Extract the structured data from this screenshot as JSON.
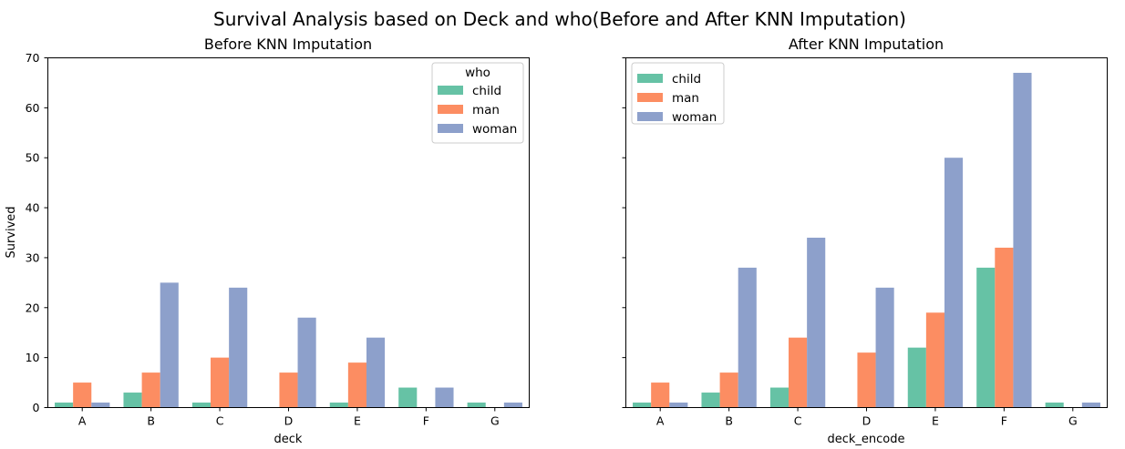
{
  "figure": {
    "title": "Survival Analysis based on Deck and who(Before and After KNN Imputation)"
  },
  "colors": {
    "child": "#66c2a5",
    "man": "#fc8d62",
    "woman": "#8da0cb"
  },
  "chart_data": [
    {
      "type": "bar",
      "title": "Before KNN Imputation",
      "xlabel": "deck",
      "ylabel": "Survived",
      "ylim": [
        0,
        70
      ],
      "yticks": [
        0,
        10,
        20,
        30,
        40,
        50,
        60,
        70
      ],
      "categories": [
        "A",
        "B",
        "C",
        "D",
        "E",
        "F",
        "G"
      ],
      "legend": {
        "title": "who",
        "position": "top-right"
      },
      "series": [
        {
          "name": "child",
          "values": [
            1,
            3,
            1,
            null,
            1,
            4,
            1
          ]
        },
        {
          "name": "man",
          "values": [
            5,
            7,
            10,
            7,
            9,
            null,
            null
          ]
        },
        {
          "name": "woman",
          "values": [
            1,
            25,
            24,
            18,
            14,
            4,
            1
          ]
        }
      ]
    },
    {
      "type": "bar",
      "title": "After KNN Imputation",
      "xlabel": "deck_encode",
      "ylabel": "",
      "ylim": [
        0,
        70
      ],
      "yticks": [
        0,
        10,
        20,
        30,
        40,
        50,
        60,
        70
      ],
      "categories": [
        "A",
        "B",
        "C",
        "D",
        "E",
        "F",
        "G"
      ],
      "legend": {
        "title": "",
        "position": "top-left"
      },
      "series": [
        {
          "name": "child",
          "values": [
            1,
            3,
            4,
            null,
            12,
            28,
            1
          ]
        },
        {
          "name": "man",
          "values": [
            5,
            7,
            14,
            11,
            19,
            32,
            null
          ]
        },
        {
          "name": "woman",
          "values": [
            1,
            28,
            34,
            24,
            50,
            67,
            1
          ]
        }
      ]
    }
  ]
}
